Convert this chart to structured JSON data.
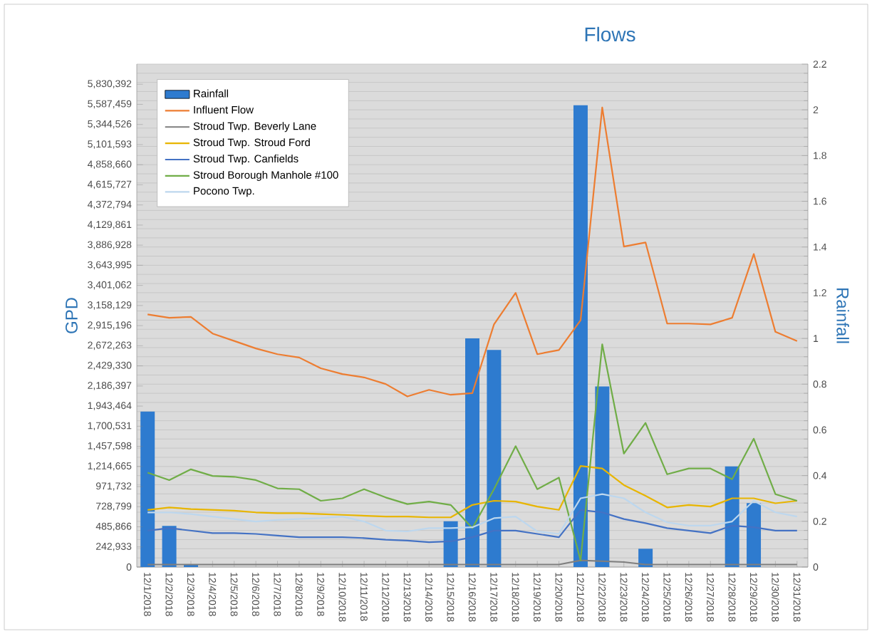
{
  "chart_data": {
    "type": "line",
    "title": "Flows",
    "ylabel": "GPD",
    "y2label": "Rainfall",
    "categories": [
      "12/1/2018",
      "12/2/2018",
      "12/3/2018",
      "12/4/2018",
      "12/5/2018",
      "12/6/2018",
      "12/7/2018",
      "12/8/2018",
      "12/9/2018",
      "12/10/2018",
      "12/11/2018",
      "12/12/2018",
      "12/13/2018",
      "12/14/2018",
      "12/15/2018",
      "12/16/2018",
      "12/17/2018",
      "12/18/2018",
      "12/19/2018",
      "12/20/2018",
      "12/21/2018",
      "12/22/2018",
      "12/23/2018",
      "12/24/2018",
      "12/25/2018",
      "12/26/2018",
      "12/27/2018",
      "12/28/2018",
      "12/29/2018",
      "12/30/2018",
      "12/31/2018"
    ],
    "series": [
      {
        "name": "Rainfall",
        "type": "bar",
        "axis": "y2",
        "color": "#2e7bcf",
        "values": [
          0.68,
          0.18,
          0.01,
          0,
          0,
          0,
          0,
          0,
          0,
          0,
          0,
          0,
          0,
          0,
          0.2,
          1.0,
          0.95,
          0,
          0,
          0,
          2.02,
          0.79,
          0,
          0.08,
          0,
          0,
          0,
          0.44,
          0.28,
          0,
          0
        ]
      },
      {
        "name": "Influent Flow",
        "color": "#ed7d31",
        "values": [
          3050000,
          3010000,
          3020000,
          2820000,
          2730000,
          2640000,
          2570000,
          2530000,
          2400000,
          2330000,
          2290000,
          2210000,
          2060000,
          2140000,
          2080000,
          2100000,
          2930000,
          3310000,
          2570000,
          2620000,
          2980000,
          5550000,
          3870000,
          3920000,
          2940000,
          2940000,
          2930000,
          3010000,
          3780000,
          2840000,
          2730000
        ]
      },
      {
        "name": "Stroud Twp. Beverly Lane",
        "color": "#7f7f7f",
        "values": [
          30000,
          30000,
          30000,
          30000,
          30000,
          30000,
          30000,
          30000,
          30000,
          30000,
          30000,
          30000,
          30000,
          30000,
          30000,
          30000,
          30000,
          30000,
          30000,
          30000,
          80000,
          70000,
          60000,
          30000,
          30000,
          30000,
          30000,
          30000,
          30000,
          30000,
          30000
        ]
      },
      {
        "name": "Stroud Twp. Stroud Ford",
        "color": "#e8b500",
        "values": [
          690000,
          720000,
          700000,
          690000,
          680000,
          660000,
          650000,
          650000,
          640000,
          630000,
          620000,
          610000,
          610000,
          600000,
          600000,
          750000,
          800000,
          790000,
          730000,
          690000,
          1220000,
          1190000,
          990000,
          860000,
          720000,
          750000,
          730000,
          830000,
          830000,
          770000,
          800000
        ]
      },
      {
        "name": "Stroud Twp. Canfields",
        "color": "#4472c4",
        "values": [
          440000,
          470000,
          440000,
          410000,
          410000,
          400000,
          380000,
          360000,
          360000,
          360000,
          350000,
          330000,
          320000,
          300000,
          310000,
          360000,
          440000,
          440000,
          400000,
          360000,
          690000,
          660000,
          580000,
          530000,
          470000,
          440000,
          410000,
          500000,
          480000,
          440000,
          440000
        ]
      },
      {
        "name": "Stroud Borough Manhole #100",
        "color": "#70ad47",
        "values": [
          1140000,
          1050000,
          1180000,
          1100000,
          1090000,
          1050000,
          950000,
          940000,
          800000,
          830000,
          940000,
          840000,
          760000,
          790000,
          750000,
          470000,
          940000,
          1460000,
          940000,
          1080000,
          80000,
          2690000,
          1370000,
          1740000,
          1120000,
          1190000,
          1190000,
          1060000,
          1550000,
          880000,
          800000
        ]
      },
      {
        "name": "Pocono Twp.",
        "color": "#bdd7ee",
        "values": [
          660000,
          660000,
          640000,
          610000,
          580000,
          550000,
          570000,
          580000,
          590000,
          610000,
          550000,
          440000,
          430000,
          470000,
          470000,
          480000,
          590000,
          610000,
          430000,
          400000,
          830000,
          880000,
          830000,
          660000,
          540000,
          500000,
          500000,
          550000,
          800000,
          660000,
          610000
        ]
      }
    ],
    "ylim": [
      0,
      6073325
    ],
    "yticks": [
      {
        "value": 0,
        "label": "0"
      },
      {
        "value": 242933,
        "label": "242,933"
      },
      {
        "value": 485866,
        "label": "485,866"
      },
      {
        "value": 728799,
        "label": "728,799"
      },
      {
        "value": 971732,
        "label": "971,732"
      },
      {
        "value": 1214665,
        "label": "1,214,665"
      },
      {
        "value": 1457598,
        "label": "1,457,598"
      },
      {
        "value": 1700531,
        "label": "1,700,531"
      },
      {
        "value": 1943464,
        "label": "1,943,464"
      },
      {
        "value": 2186397,
        "label": "2,186,397"
      },
      {
        "value": 2429330,
        "label": "2,429,330"
      },
      {
        "value": 2672263,
        "label": "2,672,263"
      },
      {
        "value": 2915196,
        "label": "2,915,196"
      },
      {
        "value": 3158129,
        "label": "3,158,129"
      },
      {
        "value": 3401062,
        "label": "3,401,062"
      },
      {
        "value": 3643995,
        "label": "3,643,995"
      },
      {
        "value": 3886928,
        "label": "3,886,928"
      },
      {
        "value": 4129861,
        "label": "4,129,861"
      },
      {
        "value": 4372794,
        "label": "4,372,794"
      },
      {
        "value": 4615727,
        "label": "4,615,727"
      },
      {
        "value": 4858660,
        "label": "4,858,660"
      },
      {
        "value": 5101593,
        "label": "5,101,593"
      },
      {
        "value": 5344526,
        "label": "5,344,526"
      },
      {
        "value": 5587459,
        "label": "5,587,459"
      },
      {
        "value": 5830392,
        "label": "5,830,392"
      }
    ],
    "y2lim": [
      0,
      2.2
    ],
    "y2ticks": [
      0,
      0.2,
      0.4,
      0.6,
      0.8,
      1,
      1.2,
      1.4,
      1.6,
      1.8,
      2,
      2.2
    ],
    "grid": "y",
    "legend": "top left"
  }
}
